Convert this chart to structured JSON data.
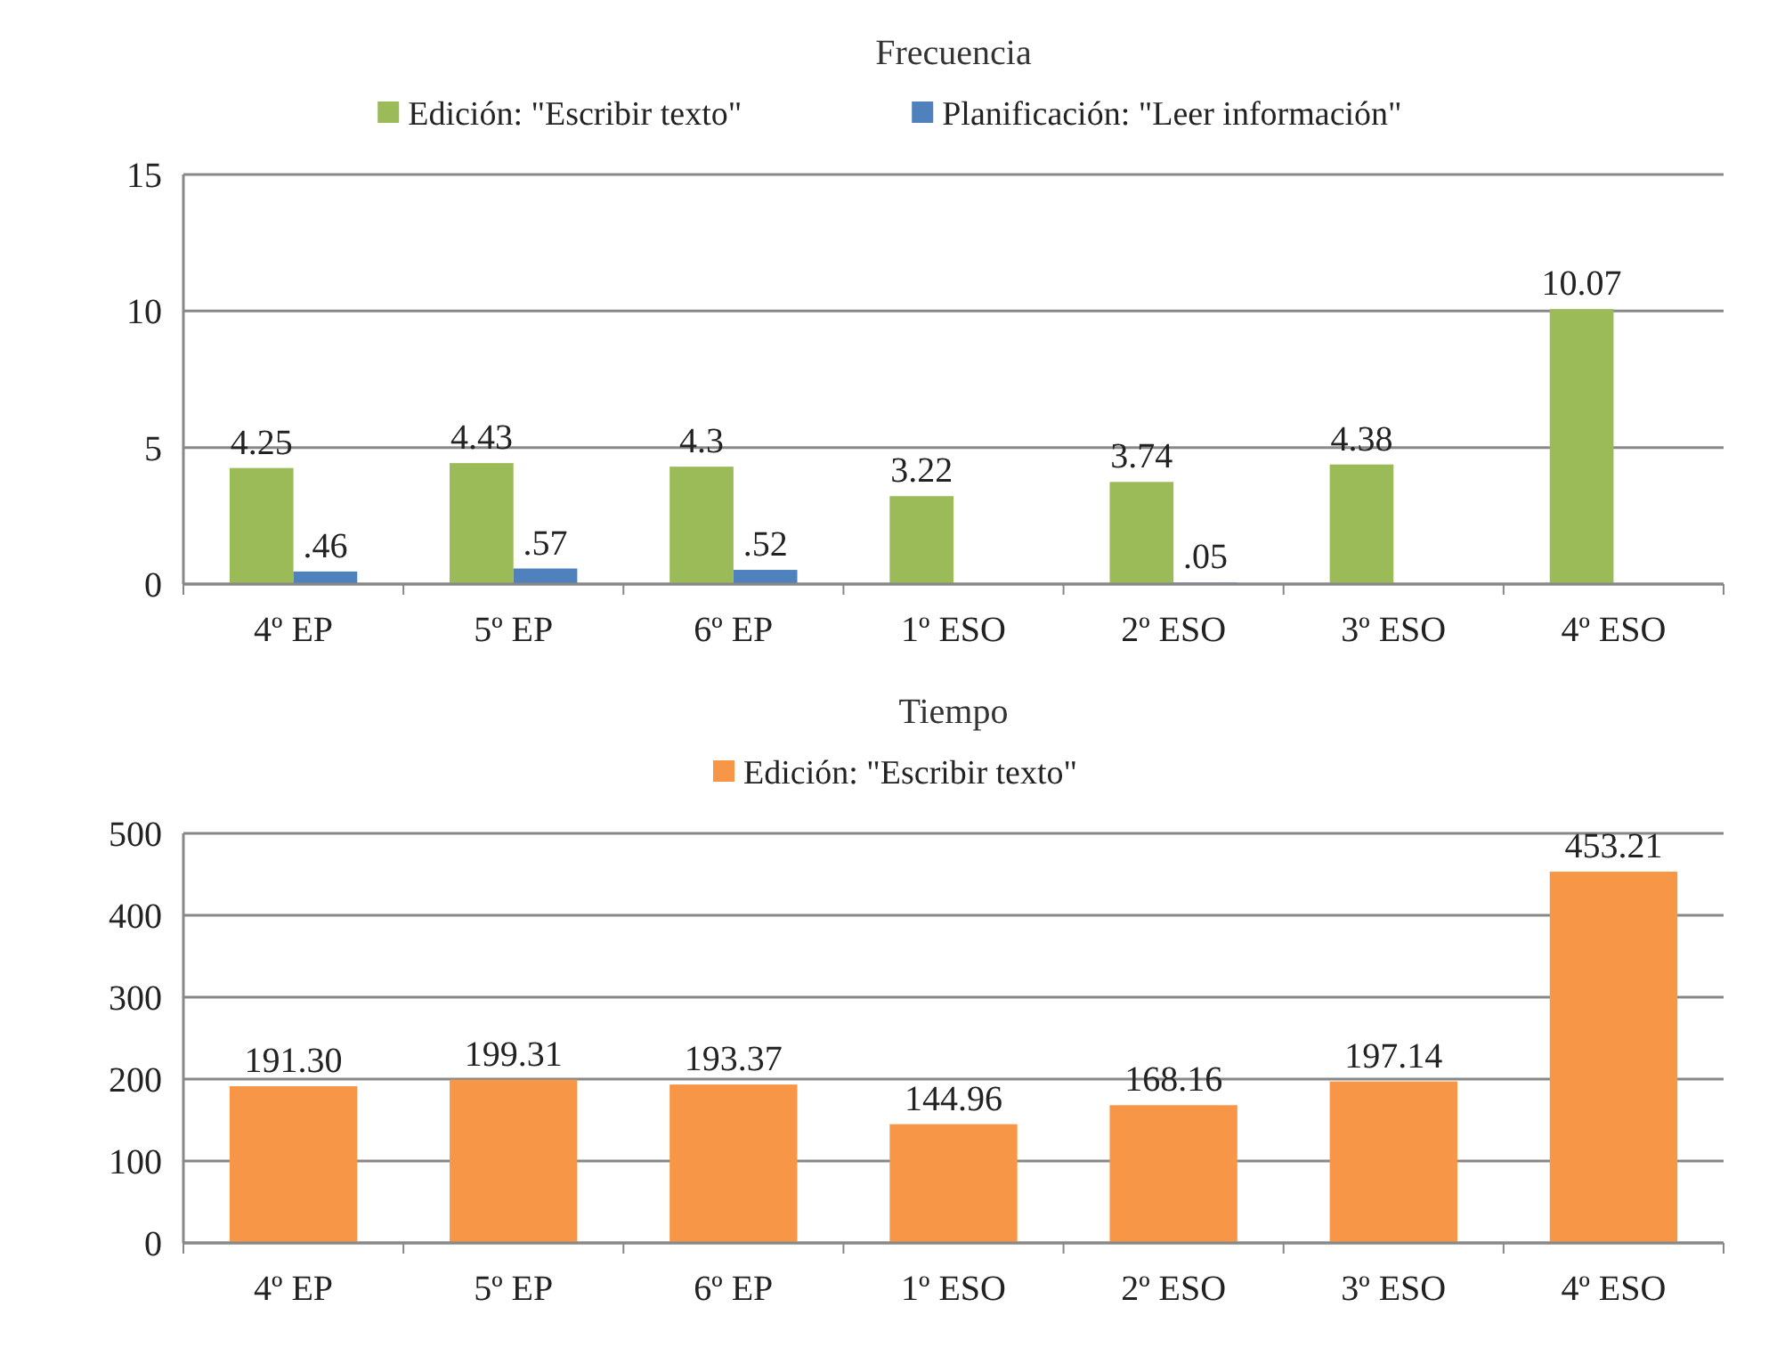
{
  "chart_data": [
    {
      "type": "bar",
      "title": "Frecuencia",
      "categories": [
        "4º EP",
        "5º EP",
        "6º EP",
        "1º ESO",
        "2º ESO",
        "3º ESO",
        "4º ESO"
      ],
      "series": [
        {
          "name": "Edición: \"Escribir texto\"",
          "color": "#9bbb59",
          "values": [
            4.25,
            4.43,
            4.3,
            3.22,
            3.74,
            4.38,
            10.07
          ],
          "value_labels": [
            "4.25",
            "4.43",
            "4.3",
            "3.22",
            "3.74",
            "4.38",
            "10.07"
          ]
        },
        {
          "name": "Planificación: \"Leer información\"",
          "color": "#4f81bd",
          "values": [
            0.46,
            0.57,
            0.52,
            null,
            0.05,
            null,
            null
          ],
          "value_labels": [
            ".46",
            ".57",
            ".52",
            null,
            ".05",
            null,
            null
          ]
        }
      ],
      "ylim": [
        0,
        15
      ],
      "yticks": [
        0,
        5,
        10,
        15
      ],
      "grid": "y",
      "legend": "top"
    },
    {
      "type": "bar",
      "title": "Tiempo",
      "categories": [
        "4º EP",
        "5º EP",
        "6º EP",
        "1º ESO",
        "2º ESO",
        "3º ESO",
        "4º ESO"
      ],
      "series": [
        {
          "name": "Edición: \"Escribir texto\"",
          "color": "#f79646",
          "values": [
            191.3,
            199.31,
            193.37,
            144.96,
            168.16,
            197.14,
            453.21
          ],
          "value_labels": [
            "191.30",
            "199.31",
            "193.37",
            "144.96",
            "168.16",
            "197.14",
            "453.21"
          ]
        }
      ],
      "ylim": [
        0,
        500
      ],
      "yticks": [
        0,
        100,
        200,
        300,
        400,
        500
      ],
      "grid": "y",
      "legend": "top"
    }
  ]
}
